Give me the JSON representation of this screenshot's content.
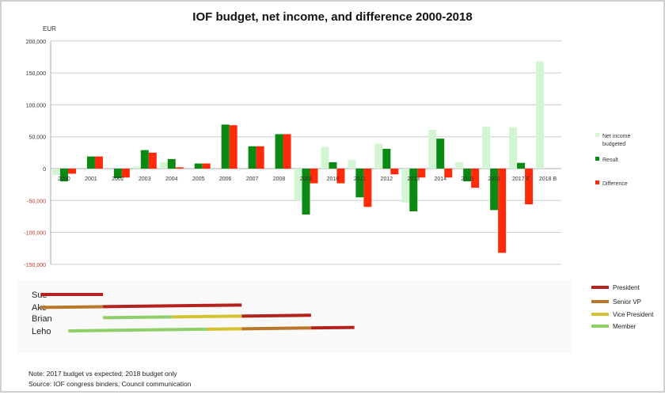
{
  "chart_data": [
    {
      "type": "bar",
      "title": "IOF budget, net income, and difference 2000-2018",
      "ylabel": "EUR",
      "xlabel": "",
      "ylim": [
        -150000,
        200000
      ],
      "yticks": [
        200000,
        150000,
        100000,
        50000,
        0,
        -50000,
        -100000,
        -150000
      ],
      "ytick_labels": [
        "200,000",
        "150,000",
        "100,000",
        "50,000",
        "0",
        "-50,000",
        "-100,000",
        "-150,000"
      ],
      "grid": true,
      "legend_position": "right",
      "categories": [
        "2000",
        "2001",
        "2002",
        "2003",
        "2004",
        "2005",
        "2006",
        "2007",
        "2008",
        "2009",
        "2010",
        "2011",
        "2012",
        "2013",
        "2014",
        "2015",
        "2016",
        "2017 E",
        "2018 B"
      ],
      "series": [
        {
          "name": "Net income budgeted",
          "color": "#d4f5d4",
          "values": [
            -10000,
            0,
            0,
            3000,
            10000,
            0,
            0,
            0,
            0,
            -50000,
            34000,
            14000,
            39000,
            -53000,
            61000,
            10000,
            66000,
            65000,
            168000
          ]
        },
        {
          "name": "Result",
          "color": "#0a8a12",
          "values": [
            -20000,
            19000,
            -15000,
            29000,
            15000,
            8000,
            69000,
            35000,
            54000,
            -72000,
            10000,
            -45000,
            31000,
            -67000,
            47000,
            -20000,
            -65000,
            9000,
            null
          ]
        },
        {
          "name": "Difference",
          "color": "#ff2a0a",
          "values": [
            -8000,
            19000,
            -14000,
            25000,
            2000,
            8000,
            68000,
            35000,
            54000,
            -23000,
            -23000,
            -60000,
            -9000,
            -14000,
            -14000,
            -30000,
            -132000,
            -56000,
            null
          ]
        }
      ]
    },
    {
      "type": "timeline",
      "legend_position": "right",
      "roles": [
        {
          "name": "President",
          "color": "#b3221c"
        },
        {
          "name": "Senior VP",
          "color": "#b8772a"
        },
        {
          "name": "Vice President",
          "color": "#d4c22e"
        },
        {
          "name": "Member",
          "color": "#8fcf6a"
        }
      ],
      "people": [
        {
          "name": "Sue",
          "segments": [
            {
              "role": "President",
              "start": 2000.4,
              "end": 2004
            }
          ]
        },
        {
          "name": "Ake",
          "segments": [
            {
              "role": "Senior VP",
              "start": 2000.4,
              "end": 2004
            },
            {
              "role": "President",
              "start": 2004,
              "end": 2012
            }
          ]
        },
        {
          "name": "Brian",
          "segments": [
            {
              "role": "Member",
              "start": 2004,
              "end": 2008
            },
            {
              "role": "Vice President",
              "start": 2008,
              "end": 2012
            },
            {
              "role": "President",
              "start": 2012,
              "end": 2016
            }
          ]
        },
        {
          "name": "Leho",
          "segments": [
            {
              "role": "Member",
              "start": 2002,
              "end": 2010
            },
            {
              "role": "Vice President",
              "start": 2010,
              "end": 2012
            },
            {
              "role": "Senior VP",
              "start": 2012,
              "end": 2016
            },
            {
              "role": "President",
              "start": 2016,
              "end": 2018.5
            }
          ]
        }
      ]
    }
  ],
  "notes": {
    "note": "Note: 2017 budget vs expected; 2018 budget only",
    "source": "Source: IOF congress binders, Council communication"
  }
}
